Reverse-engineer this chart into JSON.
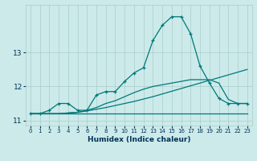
{
  "xlabel": "Humidex (Indice chaleur)",
  "background_color": "#cceaea",
  "grid_color": "#aacccc",
  "line_color": "#007878",
  "x_hours": [
    0,
    1,
    2,
    3,
    4,
    5,
    6,
    7,
    8,
    9,
    10,
    11,
    12,
    13,
    14,
    15,
    16,
    17,
    18,
    19,
    20,
    21,
    22,
    23
  ],
  "main_curve": [
    11.2,
    11.2,
    11.3,
    11.5,
    11.5,
    11.3,
    11.3,
    11.75,
    11.85,
    11.85,
    12.15,
    12.4,
    12.55,
    13.35,
    13.8,
    14.05,
    14.05,
    13.55,
    12.6,
    12.1,
    11.65,
    11.5,
    11.5,
    11.5
  ],
  "line_flat": [
    11.2,
    11.2,
    11.2,
    11.2,
    11.2,
    11.2,
    11.2,
    11.2,
    11.2,
    11.2,
    11.2,
    11.2,
    11.2,
    11.2,
    11.2,
    11.2,
    11.2,
    11.2,
    11.2,
    11.2,
    11.2,
    11.2,
    11.2,
    11.2
  ],
  "line_slow": [
    11.2,
    11.2,
    11.2,
    11.2,
    11.22,
    11.24,
    11.28,
    11.33,
    11.38,
    11.44,
    11.5,
    11.56,
    11.63,
    11.7,
    11.78,
    11.86,
    11.94,
    12.02,
    12.1,
    12.18,
    12.26,
    12.34,
    12.42,
    12.5
  ],
  "line_mid": [
    11.2,
    11.2,
    11.2,
    11.2,
    11.22,
    11.24,
    11.3,
    11.38,
    11.5,
    11.58,
    11.7,
    11.82,
    11.92,
    12.0,
    12.05,
    12.1,
    12.15,
    12.2,
    12.2,
    12.2,
    12.1,
    11.62,
    11.5,
    11.5
  ],
  "ylim": [
    10.85,
    14.4
  ],
  "xlim": [
    -0.5,
    23.5
  ]
}
